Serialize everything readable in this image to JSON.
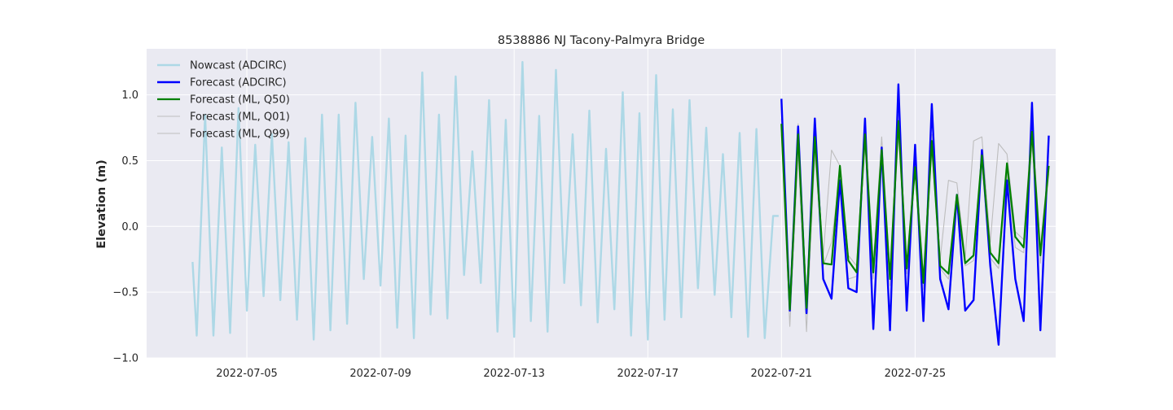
{
  "chart_data": {
    "type": "line",
    "title": "8538886 NJ Tacony-Palmyra Bridge",
    "xlabel": "",
    "ylabel": "Elevation (m)",
    "x_unit": "date (2022-07), fractional day",
    "xlim": [
      "2022-07-02T00:00",
      "2022-07-29T05:00"
    ],
    "ylim": [
      -1.0,
      1.35
    ],
    "x_ticks": [
      "2022-07-05",
      "2022-07-09",
      "2022-07-13",
      "2022-07-17",
      "2022-07-21",
      "2022-07-25"
    ],
    "y_ticks": [
      -1.0,
      -0.5,
      0.0,
      0.5,
      1.0
    ],
    "y_tick_labels": [
      "−1.0",
      "−0.5",
      "0.0",
      "0.5",
      "1.0"
    ],
    "grid": true,
    "legend_position": "top-left",
    "series": [
      {
        "name": "Nowcast (ADCIRC)",
        "color": "#add8e6",
        "x": [
          "2022-07-03T09:00",
          "2022-07-03T12:00",
          "2022-07-03T18:00",
          "2022-07-04T00:00",
          "2022-07-04T06:00",
          "2022-07-04T12:00",
          "2022-07-04T18:00",
          "2022-07-05T00:00",
          "2022-07-05T06:00",
          "2022-07-05T12:00",
          "2022-07-05T18:00",
          "2022-07-06T00:00",
          "2022-07-06T06:00",
          "2022-07-06T12:00",
          "2022-07-06T18:00",
          "2022-07-07T00:00",
          "2022-07-07T06:00",
          "2022-07-07T12:00",
          "2022-07-07T18:00",
          "2022-07-08T00:00",
          "2022-07-08T06:00",
          "2022-07-08T12:00",
          "2022-07-08T18:00",
          "2022-07-09T00:00",
          "2022-07-09T06:00",
          "2022-07-09T12:00",
          "2022-07-09T18:00",
          "2022-07-10T00:00",
          "2022-07-10T06:00",
          "2022-07-10T12:00",
          "2022-07-10T18:00",
          "2022-07-11T00:00",
          "2022-07-11T06:00",
          "2022-07-11T12:00",
          "2022-07-11T18:00",
          "2022-07-12T00:00",
          "2022-07-12T06:00",
          "2022-07-12T12:00",
          "2022-07-12T18:00",
          "2022-07-13T00:00",
          "2022-07-13T06:00",
          "2022-07-13T12:00",
          "2022-07-13T18:00",
          "2022-07-14T00:00",
          "2022-07-14T06:00",
          "2022-07-14T12:00",
          "2022-07-14T18:00",
          "2022-07-15T00:00",
          "2022-07-15T06:00",
          "2022-07-15T12:00",
          "2022-07-15T18:00",
          "2022-07-16T00:00",
          "2022-07-16T06:00",
          "2022-07-16T12:00",
          "2022-07-16T18:00",
          "2022-07-17T00:00",
          "2022-07-17T06:00",
          "2022-07-17T12:00",
          "2022-07-17T18:00",
          "2022-07-18T00:00",
          "2022-07-18T06:00",
          "2022-07-18T12:00",
          "2022-07-18T18:00",
          "2022-07-19T00:00",
          "2022-07-19T06:00",
          "2022-07-19T12:00",
          "2022-07-19T18:00",
          "2022-07-20T00:00",
          "2022-07-20T06:00",
          "2022-07-20T12:00",
          "2022-07-20T18:00",
          "2022-07-20T22:00"
        ],
        "y": [
          -0.27,
          -0.83,
          0.85,
          -0.83,
          0.6,
          -0.81,
          0.9,
          -0.64,
          0.62,
          -0.53,
          0.7,
          -0.56,
          0.64,
          -0.71,
          0.67,
          -0.86,
          0.85,
          -0.79,
          0.85,
          -0.74,
          0.94,
          -0.4,
          0.68,
          -0.45,
          0.82,
          -0.77,
          0.69,
          -0.85,
          1.17,
          -0.67,
          0.85,
          -0.7,
          1.14,
          -0.37,
          0.57,
          -0.43,
          0.96,
          -0.8,
          0.81,
          -0.84,
          1.25,
          -0.72,
          0.84,
          -0.8,
          1.19,
          -0.43,
          0.7,
          -0.6,
          0.88,
          -0.73,
          0.59,
          -0.63,
          1.02,
          -0.83,
          0.86,
          -0.86,
          1.15,
          -0.71,
          0.89,
          -0.69,
          0.96,
          -0.47,
          0.75,
          -0.52,
          0.55,
          -0.69,
          0.71,
          -0.84,
          0.74,
          -0.85,
          0.08,
          0.08
        ]
      },
      {
        "name": "Forecast (ADCIRC)",
        "color": "#0000ff",
        "x": [
          "2022-07-21T00:00",
          "2022-07-21T06:00",
          "2022-07-21T12:00",
          "2022-07-21T18:00",
          "2022-07-22T00:00",
          "2022-07-22T06:00",
          "2022-07-22T12:00",
          "2022-07-22T18:00",
          "2022-07-23T00:00",
          "2022-07-23T06:00",
          "2022-07-23T12:00",
          "2022-07-23T18:00",
          "2022-07-24T00:00",
          "2022-07-24T06:00",
          "2022-07-24T12:00",
          "2022-07-24T18:00",
          "2022-07-25T00:00",
          "2022-07-25T06:00",
          "2022-07-25T12:00",
          "2022-07-25T18:00",
          "2022-07-26T00:00",
          "2022-07-26T06:00",
          "2022-07-26T12:00",
          "2022-07-26T18:00",
          "2022-07-27T00:00",
          "2022-07-27T06:00",
          "2022-07-27T12:00",
          "2022-07-27T18:00",
          "2022-07-28T00:00",
          "2022-07-28T06:00",
          "2022-07-28T12:00",
          "2022-07-28T18:00",
          "2022-07-29T00:00"
        ],
        "y": [
          0.97,
          -0.64,
          0.76,
          -0.66,
          0.82,
          -0.4,
          -0.55,
          0.35,
          -0.47,
          -0.5,
          0.82,
          -0.78,
          0.6,
          -0.79,
          1.08,
          -0.64,
          0.62,
          -0.72,
          0.93,
          -0.4,
          -0.63,
          0.24,
          -0.64,
          -0.56,
          0.58,
          -0.3,
          -0.9,
          0.35,
          -0.4,
          -0.72,
          0.94,
          -0.79,
          0.69
        ]
      },
      {
        "name": "Forecast (ML, Q50)",
        "color": "#008000",
        "x": [
          "2022-07-21T00:00",
          "2022-07-21T06:00",
          "2022-07-21T12:00",
          "2022-07-21T18:00",
          "2022-07-22T00:00",
          "2022-07-22T06:00",
          "2022-07-22T12:00",
          "2022-07-22T18:00",
          "2022-07-23T00:00",
          "2022-07-23T06:00",
          "2022-07-23T12:00",
          "2022-07-23T18:00",
          "2022-07-24T00:00",
          "2022-07-24T06:00",
          "2022-07-24T12:00",
          "2022-07-24T18:00",
          "2022-07-25T00:00",
          "2022-07-25T06:00",
          "2022-07-25T12:00",
          "2022-07-25T18:00",
          "2022-07-26T00:00",
          "2022-07-26T06:00",
          "2022-07-26T12:00",
          "2022-07-26T18:00",
          "2022-07-27T00:00",
          "2022-07-27T06:00",
          "2022-07-27T12:00",
          "2022-07-27T18:00",
          "2022-07-28T00:00",
          "2022-07-28T06:00",
          "2022-07-28T12:00",
          "2022-07-28T18:00",
          "2022-07-29T00:00"
        ],
        "y": [
          0.78,
          -0.63,
          0.7,
          -0.62,
          0.68,
          -0.28,
          -0.29,
          0.46,
          -0.26,
          -0.35,
          0.7,
          -0.35,
          0.58,
          -0.4,
          0.8,
          -0.32,
          0.45,
          -0.43,
          0.65,
          -0.3,
          -0.36,
          0.24,
          -0.28,
          -0.22,
          0.54,
          -0.2,
          -0.28,
          0.48,
          -0.08,
          -0.16,
          0.72,
          -0.22,
          0.46
        ]
      },
      {
        "name": "Forecast (ML, Q01)",
        "color": "#bdbdbd",
        "x": [
          "2022-07-21T00:00",
          "2022-07-21T06:00",
          "2022-07-21T12:00",
          "2022-07-21T18:00",
          "2022-07-22T00:00",
          "2022-07-22T06:00",
          "2022-07-22T12:00",
          "2022-07-22T18:00",
          "2022-07-23T00:00",
          "2022-07-23T06:00",
          "2022-07-23T12:00",
          "2022-07-23T18:00",
          "2022-07-24T00:00",
          "2022-07-24T06:00",
          "2022-07-24T12:00",
          "2022-07-24T18:00",
          "2022-07-25T00:00",
          "2022-07-25T06:00",
          "2022-07-25T12:00",
          "2022-07-25T18:00",
          "2022-07-26T00:00",
          "2022-07-26T06:00",
          "2022-07-26T12:00",
          "2022-07-26T18:00",
          "2022-07-27T00:00",
          "2022-07-27T06:00",
          "2022-07-27T12:00",
          "2022-07-27T18:00",
          "2022-07-28T00:00",
          "2022-07-28T06:00",
          "2022-07-28T12:00",
          "2022-07-28T18:00",
          "2022-07-29T00:00"
        ],
        "y": [
          0.7,
          -0.76,
          0.55,
          -0.8,
          0.55,
          -0.3,
          -0.12,
          0.4,
          -0.4,
          -0.38,
          0.62,
          -0.4,
          0.48,
          -0.45,
          0.7,
          -0.36,
          0.42,
          -0.48,
          0.58,
          -0.32,
          -0.4,
          0.16,
          -0.3,
          -0.26,
          0.46,
          -0.24,
          -0.32,
          0.4,
          -0.16,
          -0.2,
          0.62,
          -0.28,
          0.4
        ]
      },
      {
        "name": "Forecast (ML, Q99)",
        "color": "#bdbdbd",
        "x": [
          "2022-07-21T00:00",
          "2022-07-21T06:00",
          "2022-07-21T12:00",
          "2022-07-21T18:00",
          "2022-07-22T00:00",
          "2022-07-22T06:00",
          "2022-07-22T12:00",
          "2022-07-22T18:00",
          "2022-07-23T00:00",
          "2022-07-23T06:00",
          "2022-07-23T12:00",
          "2022-07-23T18:00",
          "2022-07-24T00:00",
          "2022-07-24T06:00",
          "2022-07-24T12:00",
          "2022-07-24T18:00",
          "2022-07-25T00:00",
          "2022-07-25T06:00",
          "2022-07-25T12:00",
          "2022-07-25T18:00",
          "2022-07-26T00:00",
          "2022-07-26T06:00",
          "2022-07-26T12:00",
          "2022-07-26T18:00",
          "2022-07-27T00:00",
          "2022-07-27T06:00",
          "2022-07-27T12:00",
          "2022-07-27T18:00",
          "2022-07-28T00:00",
          "2022-07-28T06:00",
          "2022-07-28T12:00",
          "2022-07-28T18:00",
          "2022-07-29T00:00"
        ],
        "y": [
          0.82,
          -0.55,
          0.78,
          -0.6,
          0.72,
          -0.22,
          0.58,
          0.46,
          -0.22,
          -0.3,
          0.78,
          -0.3,
          0.68,
          -0.36,
          0.85,
          -0.28,
          0.52,
          -0.38,
          0.7,
          -0.25,
          0.35,
          0.33,
          -0.24,
          0.65,
          0.68,
          -0.12,
          0.63,
          0.55,
          -0.04,
          -0.1,
          0.8,
          -0.16,
          0.5
        ]
      }
    ]
  }
}
